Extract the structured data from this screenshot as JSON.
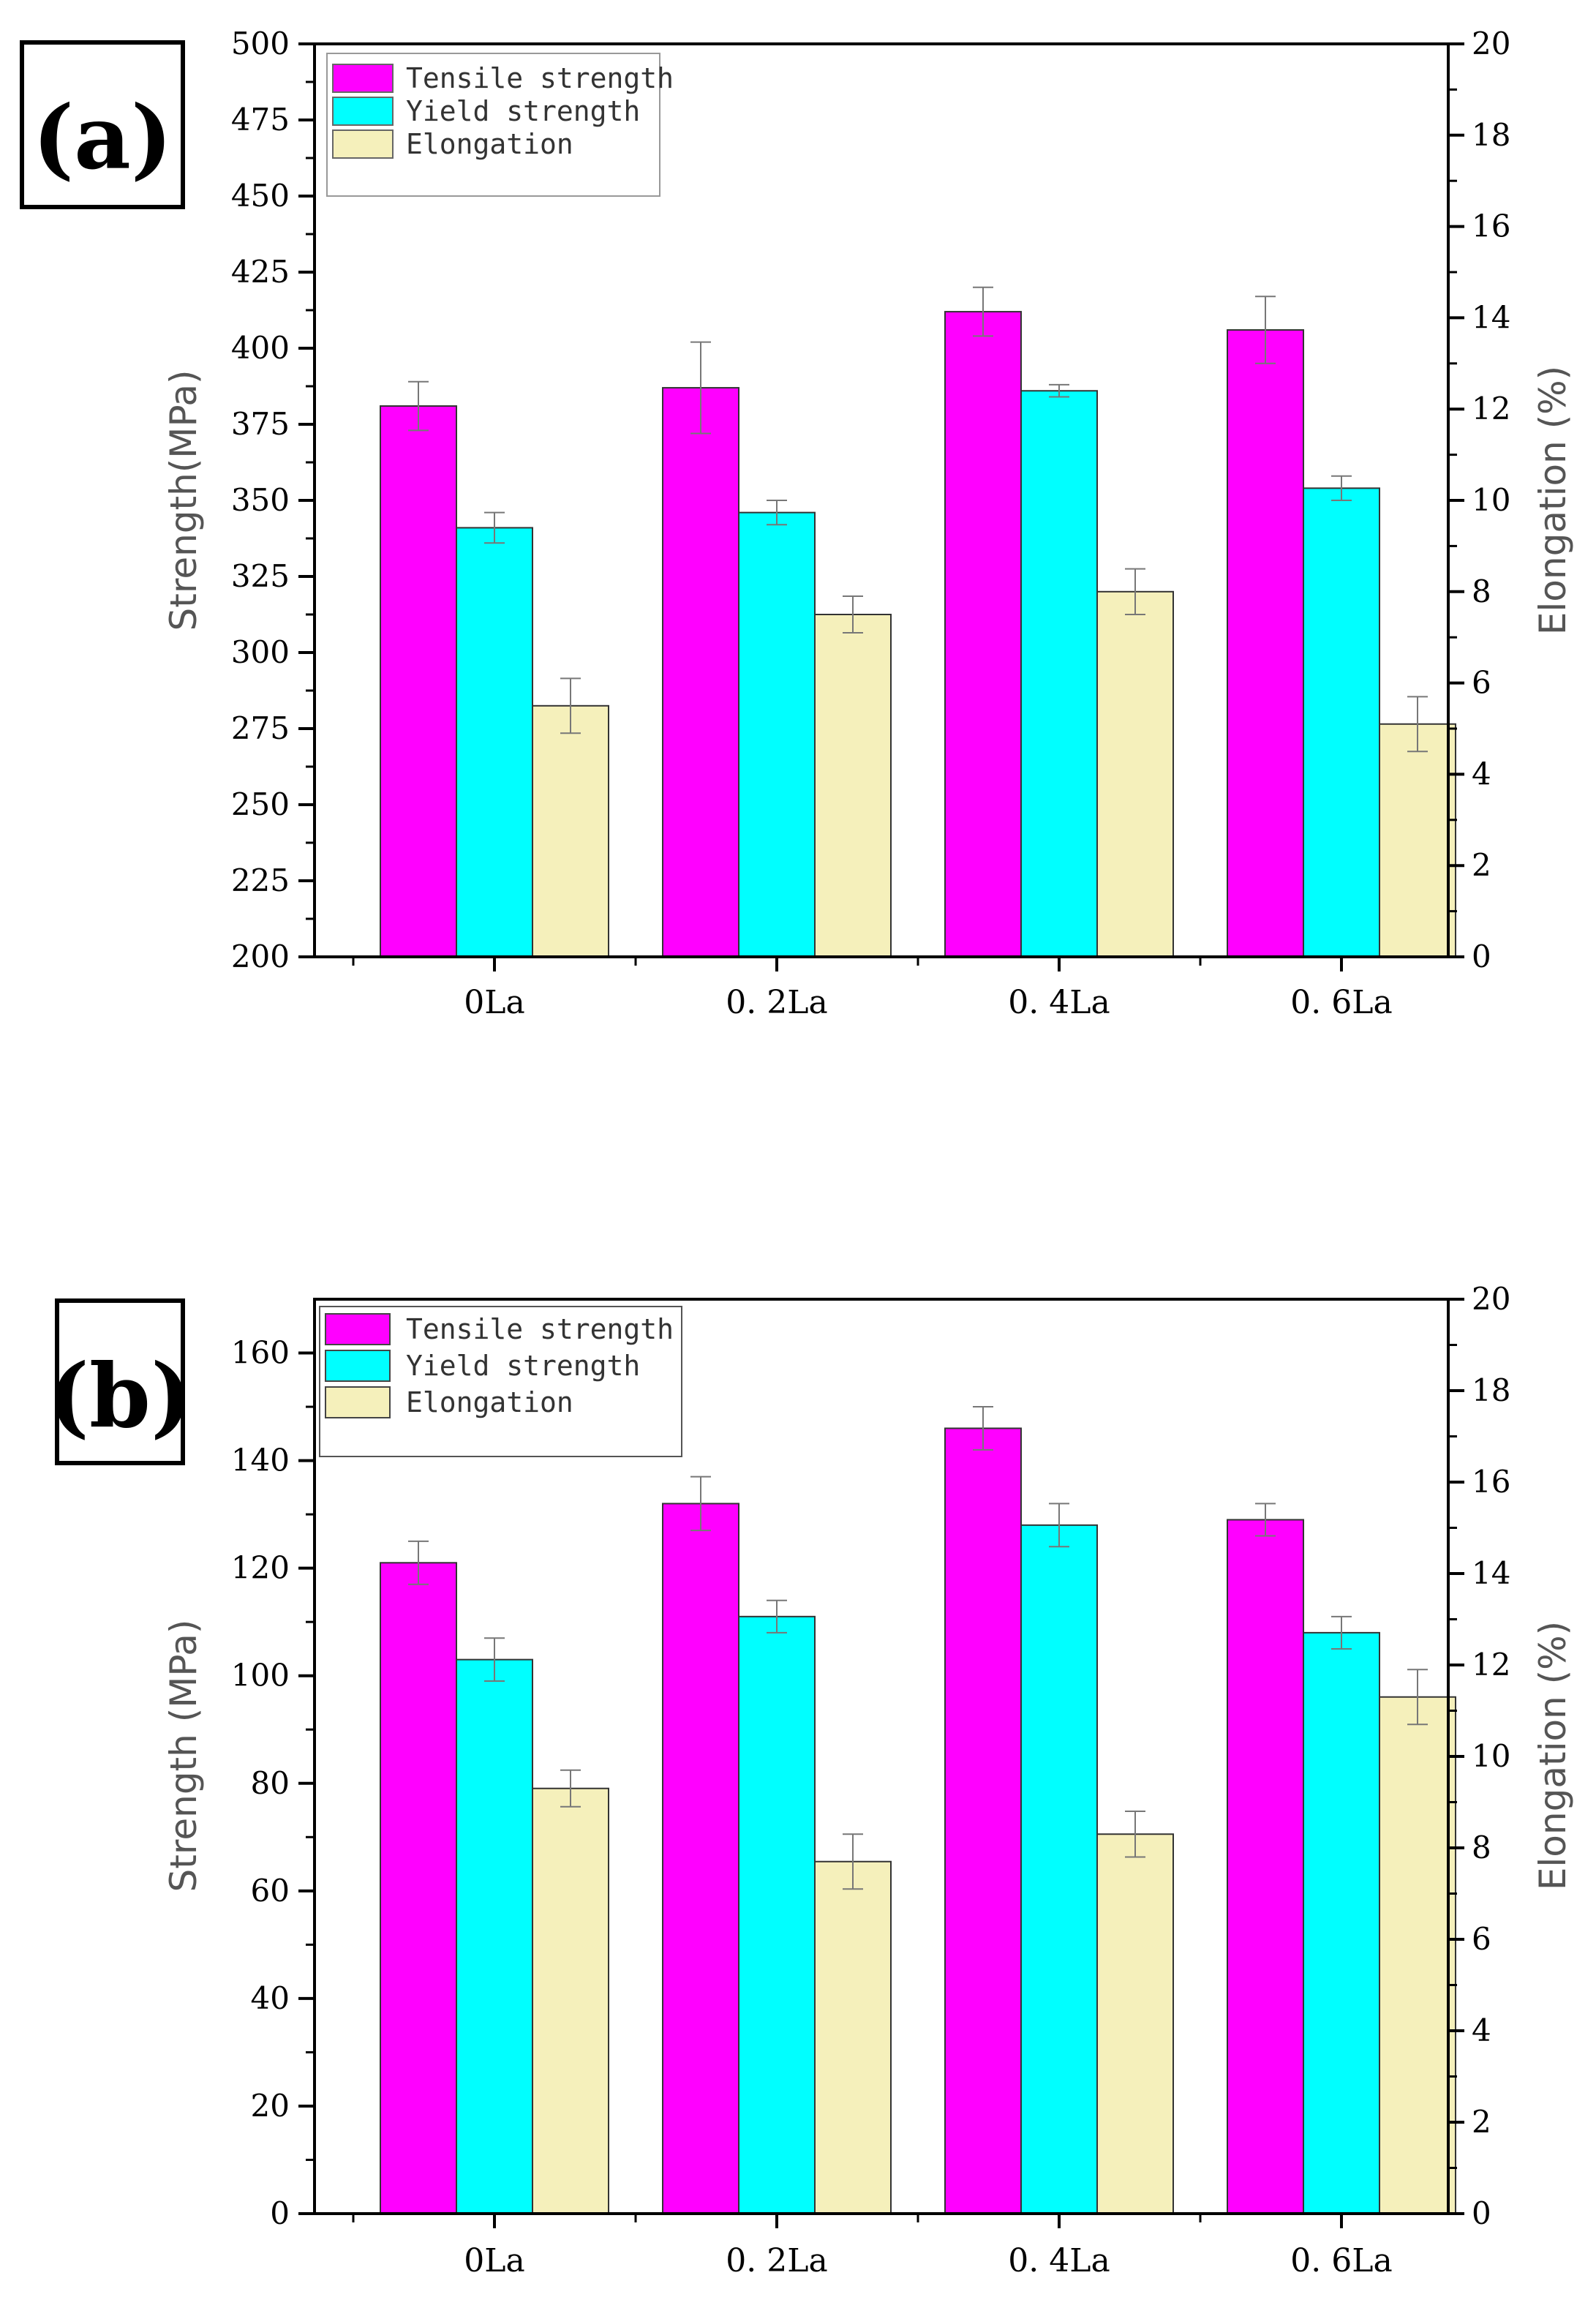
{
  "chart_data": [
    {
      "type": "bar",
      "panel_label": "(a)",
      "categories": [
        "0La",
        "0. 2La",
        "0. 4La",
        "0. 6La"
      ],
      "series": [
        {
          "name": "Tensile strength",
          "axis": "left",
          "color": "#ff00ff",
          "values": [
            381,
            387,
            412,
            406
          ],
          "errors": [
            8,
            15,
            8,
            11
          ]
        },
        {
          "name": "Yield strength",
          "axis": "left",
          "color": "#00ffff",
          "values": [
            341,
            346,
            386,
            354
          ],
          "errors": [
            5,
            4,
            2,
            4
          ]
        },
        {
          "name": "Elongation",
          "axis": "right",
          "color": "#f5f0bb",
          "values": [
            5.5,
            7.5,
            8.0,
            5.1
          ],
          "errors": [
            0.6,
            0.4,
            0.5,
            0.6
          ]
        }
      ],
      "ylabel": "Strength(MPa)",
      "y2label": "Elongation (%)",
      "ylim": [
        200,
        500
      ],
      "y2lim": [
        0,
        20
      ],
      "yticks": [
        200,
        225,
        250,
        275,
        300,
        325,
        350,
        375,
        400,
        425,
        450,
        475,
        500
      ],
      "y2ticks": [
        0,
        2,
        4,
        6,
        8,
        10,
        12,
        14,
        16,
        18,
        20
      ],
      "legend_position": "top-left",
      "grid": false
    },
    {
      "type": "bar",
      "panel_label": "(b)",
      "categories": [
        "0La",
        "0. 2La",
        "0. 4La",
        "0. 6La"
      ],
      "series": [
        {
          "name": "Tensile strength",
          "axis": "left",
          "color": "#ff00ff",
          "values": [
            121,
            132,
            146,
            129
          ],
          "errors": [
            4,
            5,
            4,
            3
          ]
        },
        {
          "name": "Yield strength",
          "axis": "left",
          "color": "#00ffff",
          "values": [
            103,
            111,
            128,
            108
          ],
          "errors": [
            4,
            3,
            4,
            3
          ]
        },
        {
          "name": "Elongation",
          "axis": "right",
          "color": "#f5f0bb",
          "values": [
            9.3,
            7.7,
            8.3,
            11.3
          ],
          "errors": [
            0.4,
            0.6,
            0.5,
            0.6
          ]
        }
      ],
      "ylabel": "Strength (MPa)",
      "y2label": "Elongation (%)",
      "ylim": [
        0,
        170
      ],
      "y2lim": [
        0,
        20
      ],
      "yticks": [
        0,
        20,
        40,
        60,
        80,
        100,
        120,
        140,
        160
      ],
      "y2ticks": [
        0,
        2,
        4,
        6,
        8,
        10,
        12,
        14,
        16,
        18,
        20
      ],
      "legend_position": "top-left",
      "grid": false
    }
  ]
}
